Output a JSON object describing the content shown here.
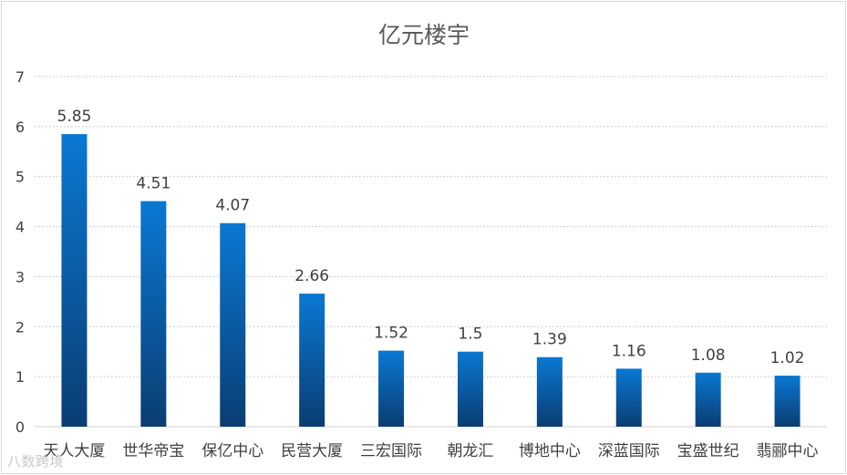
{
  "chart_data": {
    "type": "bar",
    "title": "亿元楼宇",
    "categories": [
      "天人大厦",
      "世华帝宝",
      "保亿中心",
      "民营大厦",
      "三宏国际",
      "朝龙汇",
      "博地中心",
      "深蓝国际",
      "宝盛世纪",
      "翡郦中心"
    ],
    "values": [
      5.85,
      4.51,
      4.07,
      2.66,
      1.52,
      1.5,
      1.39,
      1.16,
      1.08,
      1.02
    ],
    "value_labels": [
      "5.85",
      "4.51",
      "4.07",
      "2.66",
      "1.52",
      "1.5",
      "1.39",
      "1.16",
      "1.08",
      "1.02"
    ],
    "yticks": [
      "0",
      "1",
      "2",
      "3",
      "4",
      "5",
      "6",
      "7"
    ],
    "ylim": [
      0,
      7
    ],
    "xlabel": "",
    "ylabel": "",
    "grid": true
  },
  "colors": {
    "bar_top": "#0a78d2",
    "bar_bottom": "#0a3d73",
    "grid": "#bfbfbf",
    "axis": "#d9d9d9",
    "text": "#404040",
    "title": "#595959"
  },
  "watermark": {
    "text": "八数跨境"
  }
}
